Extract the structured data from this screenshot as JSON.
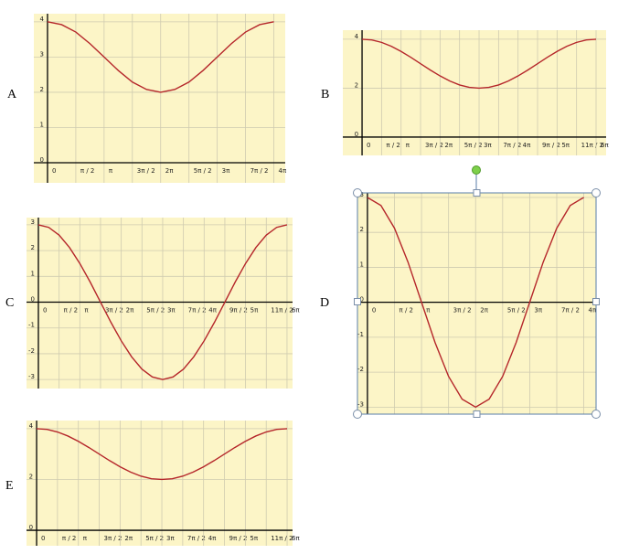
{
  "chart_data": [
    {
      "type": "line",
      "title": "A",
      "color": "#b5262a",
      "grid": true,
      "x": [
        0,
        0.785,
        1.571,
        2.356,
        3.142,
        3.927,
        4.712,
        5.498,
        6.283,
        7.069,
        7.854,
        8.639,
        9.425,
        10.21,
        10.996,
        11.781,
        12.566
      ],
      "values": [
        4,
        3.92,
        3.71,
        3.38,
        3,
        2.62,
        2.29,
        2.08,
        2,
        2.08,
        2.29,
        2.62,
        3,
        3.38,
        3.71,
        3.92,
        4
      ],
      "xlim": [
        -0.76,
        13.2
      ],
      "ylim": [
        -0.57,
        4.23
      ],
      "xticks": [
        0,
        {
          "value": 1.571,
          "label": "π / 2"
        },
        {
          "value": 3.142,
          "label": "π"
        },
        {
          "value": 4.712,
          "label": "3π / 2"
        },
        {
          "value": 6.283,
          "label": "2π"
        },
        {
          "value": 7.854,
          "label": "5π / 2"
        },
        {
          "value": 9.425,
          "label": "3π"
        },
        {
          "value": 10.996,
          "label": "7π / 2"
        },
        {
          "value": 12.566,
          "label": "4π"
        }
      ],
      "yticks": [
        0,
        1,
        2,
        3,
        4
      ]
    },
    {
      "type": "line",
      "title": "B",
      "color": "#b5262a",
      "grid": true,
      "x": [
        0,
        0.785,
        1.571,
        2.356,
        3.142,
        3.927,
        4.712,
        5.498,
        6.283,
        7.069,
        7.854,
        8.639,
        9.425,
        10.21,
        10.996,
        11.781,
        12.566,
        13.352,
        14.137,
        14.923,
        15.708,
        16.493,
        17.279,
        18.064,
        18.85
      ],
      "values": [
        4,
        3.97,
        3.87,
        3.71,
        3.5,
        3.26,
        3,
        2.74,
        2.5,
        2.29,
        2.13,
        2.03,
        2,
        2.03,
        2.13,
        2.29,
        2.5,
        2.74,
        3,
        3.26,
        3.5,
        3.71,
        3.87,
        3.97,
        4
      ],
      "xlim": [
        -1.55,
        19.66
      ],
      "ylim": [
        -0.75,
        4.37
      ],
      "xticks": [
        0,
        {
          "value": 1.571,
          "label": "π / 2"
        },
        {
          "value": 3.142,
          "label": "π"
        },
        {
          "value": 4.712,
          "label": "3π / 2"
        },
        {
          "value": 6.283,
          "label": "2π"
        },
        {
          "value": 7.854,
          "label": "5π / 2"
        },
        {
          "value": 9.425,
          "label": "3π"
        },
        {
          "value": 10.996,
          "label": "7π / 2"
        },
        {
          "value": 12.566,
          "label": "4π"
        },
        {
          "value": 14.137,
          "label": "9π / 2"
        },
        {
          "value": 15.708,
          "label": "5π"
        },
        {
          "value": 17.279,
          "label": "11π / 2"
        },
        {
          "value": 18.85,
          "label": "6π"
        }
      ],
      "yticks": [
        0,
        2,
        4
      ]
    },
    {
      "type": "line",
      "title": "C",
      "color": "#b5262a",
      "grid": true,
      "x": [
        0,
        0.785,
        1.571,
        2.356,
        3.142,
        3.927,
        4.712,
        5.498,
        6.283,
        7.069,
        7.854,
        8.639,
        9.425,
        10.21,
        10.996,
        11.781,
        12.566,
        13.352,
        14.137,
        14.923,
        15.708,
        16.493,
        17.279,
        18.064,
        18.85
      ],
      "values": [
        3,
        2.9,
        2.6,
        2.12,
        1.5,
        0.78,
        0,
        -0.78,
        -1.5,
        -2.12,
        -2.6,
        -2.9,
        -3,
        -2.9,
        -2.6,
        -2.12,
        -1.5,
        -0.78,
        0,
        0.78,
        1.5,
        2.12,
        2.6,
        2.9,
        3
      ],
      "xlim": [
        -0.9,
        19.27
      ],
      "ylim": [
        -3.35,
        3.28
      ],
      "xticks": [
        0,
        {
          "value": 1.571,
          "label": "π / 2"
        },
        {
          "value": 3.142,
          "label": "π"
        },
        {
          "value": 4.712,
          "label": "3π / 2"
        },
        {
          "value": 6.283,
          "label": "2π"
        },
        {
          "value": 7.854,
          "label": "5π / 2"
        },
        {
          "value": 9.425,
          "label": "3π"
        },
        {
          "value": 10.996,
          "label": "7π / 2"
        },
        {
          "value": 12.566,
          "label": "4π"
        },
        {
          "value": 14.137,
          "label": "9π / 2"
        },
        {
          "value": 15.708,
          "label": "5π"
        },
        {
          "value": 17.279,
          "label": "11π / 2"
        },
        {
          "value": 18.85,
          "label": "6π"
        }
      ],
      "yticks": [
        -3,
        -2,
        -1,
        0,
        1,
        2,
        3
      ]
    },
    {
      "type": "line",
      "title": "D",
      "color": "#b5262a",
      "grid": true,
      "x": [
        0,
        0.785,
        1.571,
        2.356,
        3.142,
        3.927,
        4.712,
        5.498,
        6.283,
        7.069,
        7.854,
        8.639,
        9.425,
        10.21,
        10.996,
        11.781,
        12.566
      ],
      "values": [
        3,
        2.77,
        2.12,
        1.15,
        0,
        -1.15,
        -2.12,
        -2.77,
        -3,
        -2.77,
        -2.12,
        -1.15,
        0,
        1.15,
        2.12,
        2.77,
        3
      ],
      "xlim": [
        -0.58,
        13.28
      ],
      "ylim": [
        -3.2,
        3.13
      ],
      "xticks": [
        0,
        {
          "value": 1.571,
          "label": "π / 2"
        },
        {
          "value": 3.142,
          "label": "π"
        },
        {
          "value": 4.712,
          "label": "3π / 2"
        },
        {
          "value": 6.283,
          "label": "2π"
        },
        {
          "value": 7.854,
          "label": "5π / 2"
        },
        {
          "value": 9.425,
          "label": "3π"
        },
        {
          "value": 10.996,
          "label": "7π / 2"
        },
        {
          "value": 12.566,
          "label": "4π"
        }
      ],
      "yticks": [
        -3,
        -2,
        -1,
        0,
        1,
        2,
        3
      ]
    },
    {
      "type": "line",
      "title": "E",
      "color": "#b5262a",
      "grid": true,
      "x": [
        0,
        0.785,
        1.571,
        2.356,
        3.142,
        3.927,
        4.712,
        5.498,
        6.283,
        7.069,
        7.854,
        8.639,
        9.425,
        10.21,
        10.996,
        11.781,
        12.566,
        13.352,
        14.137,
        14.923,
        15.708,
        16.493,
        17.279,
        18.064,
        18.85
      ],
      "values": [
        4,
        3.97,
        3.87,
        3.71,
        3.5,
        3.26,
        3,
        2.74,
        2.5,
        2.29,
        2.13,
        2.03,
        2,
        2.03,
        2.13,
        2.29,
        2.5,
        2.74,
        3,
        3.26,
        3.5,
        3.71,
        3.87,
        3.97,
        4
      ],
      "xlim": [
        -0.76,
        19.26
      ],
      "ylim": [
        -0.61,
        4.32
      ],
      "xticks": [
        0,
        {
          "value": 1.571,
          "label": "π / 2"
        },
        {
          "value": 3.142,
          "label": "π"
        },
        {
          "value": 4.712,
          "label": "3π / 2"
        },
        {
          "value": 6.283,
          "label": "2π"
        },
        {
          "value": 7.854,
          "label": "5π / 2"
        },
        {
          "value": 9.425,
          "label": "3π"
        },
        {
          "value": 10.996,
          "label": "7π / 2"
        },
        {
          "value": 12.566,
          "label": "4π"
        },
        {
          "value": 14.137,
          "label": "9π / 2"
        },
        {
          "value": 15.708,
          "label": "5π"
        },
        {
          "value": 17.279,
          "label": "11π / 2"
        },
        {
          "value": 18.85,
          "label": "6π"
        }
      ],
      "yticks": [
        0,
        2,
        4
      ]
    }
  ]
}
